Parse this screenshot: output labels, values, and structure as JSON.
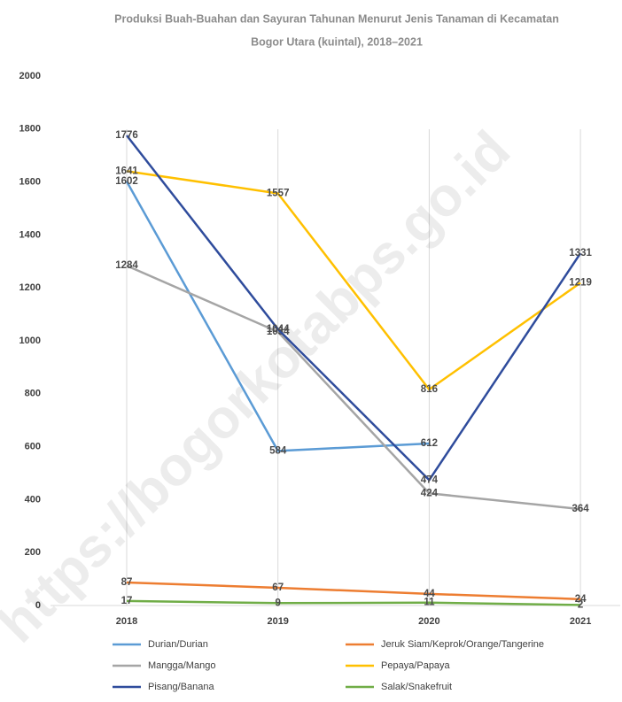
{
  "chart_data": {
    "type": "line",
    "title": [
      "Produksi Buah-Buahan dan Sayuran Tahunan Menurut Jenis Tanaman di Kecamatan",
      "Bogor Utara (kuintal), 2018–2021"
    ],
    "watermark": "https://bogorkotabps.go.id",
    "categories": [
      "2018",
      "2019",
      "2020",
      "2021"
    ],
    "series": [
      {
        "name": "Durian/Durian",
        "color": "#5b9bd5",
        "values": [
          1602,
          584,
          612,
          null
        ]
      },
      {
        "name": "Jeruk Siam/Keprok/Orange/Tangerine",
        "color": "#ed7d31",
        "values": [
          87,
          67,
          44,
          24
        ]
      },
      {
        "name": "Mangga/Mango",
        "color": "#a5a5a5",
        "values": [
          1284,
          1034,
          424,
          364
        ]
      },
      {
        "name": "Pepaya/Papaya",
        "color": "#ffc000",
        "values": [
          1641,
          1557,
          816,
          1219
        ]
      },
      {
        "name": "Pisang/Banana",
        "color": "#2f4c9c",
        "values": [
          1776,
          1044,
          474,
          1331
        ]
      },
      {
        "name": "Salak/Snakefruit",
        "color": "#70ad47",
        "values": [
          17,
          9,
          11,
          2
        ]
      }
    ],
    "ylim": [
      0,
      2000
    ],
    "yticks": [
      0,
      200,
      400,
      600,
      800,
      1000,
      1200,
      1400,
      1600,
      1800,
      2000
    ],
    "grid": "x",
    "legend": "bottom"
  }
}
